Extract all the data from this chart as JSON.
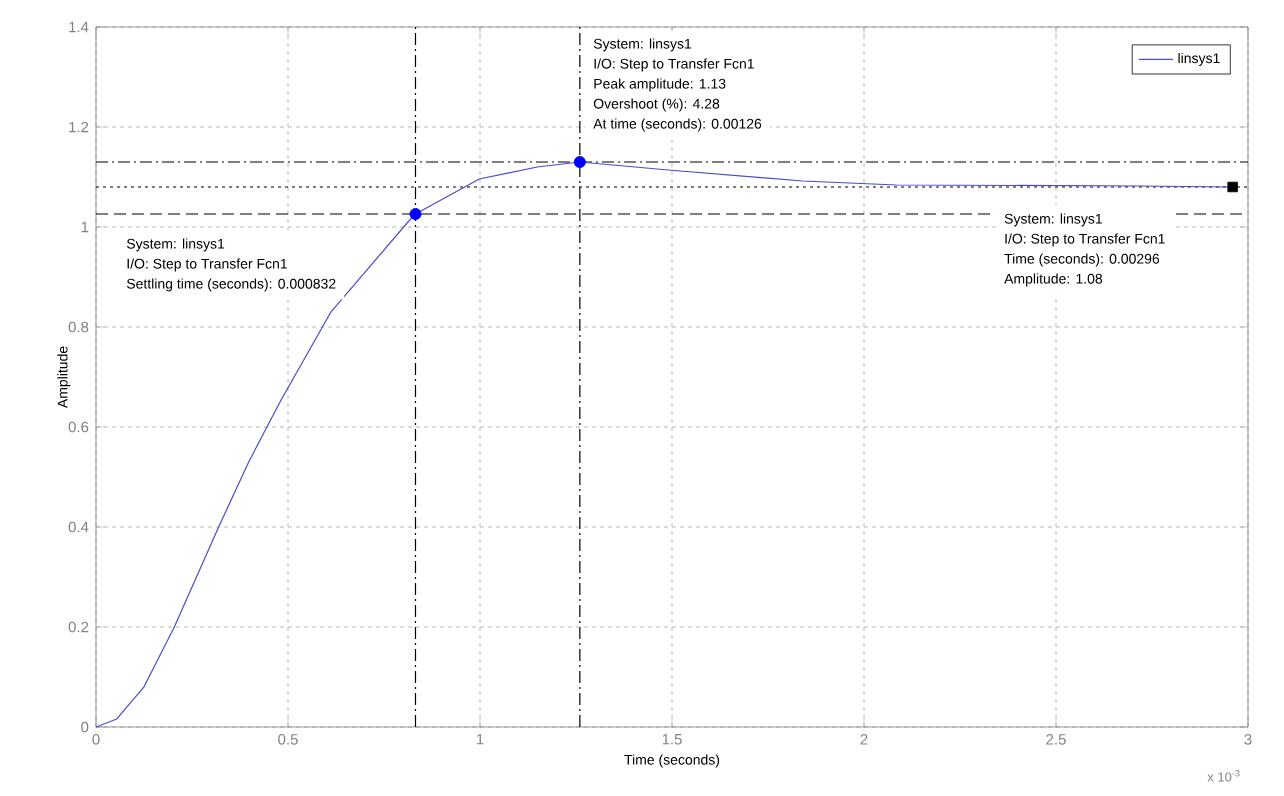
{
  "chart_data": {
    "type": "line",
    "xlabel": "Time (seconds)",
    "ylabel": "Amplitude",
    "xlim": [
      0,
      3
    ],
    "xticks": [
      0,
      0.5,
      1,
      1.5,
      2,
      2.5,
      3
    ],
    "ylim": [
      0,
      1.4
    ],
    "yticks": [
      0,
      0.2,
      0.4,
      0.6,
      0.8,
      1,
      1.2,
      1.4
    ],
    "grid": true,
    "legend": "top right",
    "series": [
      {
        "name": "linsys1",
        "color": "#4b4bc8",
        "x": [
          0,
          0.054,
          0.124,
          0.204,
          0.317,
          0.397,
          0.445,
          0.482,
          0.611,
          0.81,
          0.832,
          0.998,
          1.149,
          1.26,
          1.49,
          1.84,
          2.085,
          2.72,
          2.96
        ],
        "values": [
          0,
          0.016,
          0.079,
          0.2,
          0.396,
          0.529,
          0.6,
          0.654,
          0.829,
          1.008,
          1.026,
          1.096,
          1.12,
          1.13,
          1.114,
          1.092,
          1.084,
          1.082,
          1.08
        ]
      },
      {
        "type": "scatter",
        "marker": "circle",
        "color": "#0000ff",
        "x": [
          0.832,
          1.26
        ],
        "values": [
          1.026,
          1.13
        ]
      },
      {
        "type": "scatter",
        "marker": "square",
        "color": "#000000",
        "x": [
          2.96
        ],
        "values": [
          1.08
        ]
      }
    ],
    "ref_lines": [
      {
        "axis": "x",
        "value": 0.832,
        "line_style": "dashdot",
        "color": "#000000"
      },
      {
        "axis": "x",
        "value": 1.26,
        "line_style": "dashdot",
        "color": "#000000"
      },
      {
        "axis": "y",
        "value": 1.13,
        "line_style": "dashdot",
        "color": "#000000"
      },
      {
        "axis": "y",
        "value": 1.08,
        "line_style": "dotted",
        "color": "#000000"
      },
      {
        "axis": "y",
        "value": 1.026,
        "line_style": "dashed",
        "color": "#000000"
      }
    ],
    "annotations": [
      "System: linsys1",
      "I/O: Step to Transfer Fcn1",
      "Settling time (seconds): 0.000832",
      "System: linsys1",
      "I/O: Step to Transfer Fcn1",
      "Peak amplitude: 1.13",
      "Overshoot (%): 4.28",
      "At time (seconds): 0.00126",
      "System: linsys1",
      "I/O: Step to Transfer Fcn1",
      "Time (seconds): 0.00296",
      "Amplitude: 1.08",
      "x 10$^{-3}$"
    ]
  }
}
